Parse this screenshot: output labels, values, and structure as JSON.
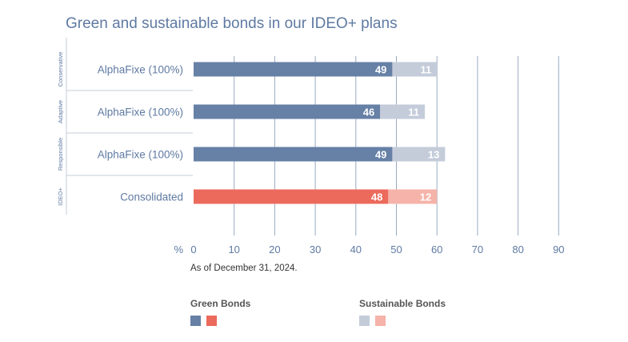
{
  "chart_data": {
    "type": "bar",
    "orientation": "horizontal",
    "stacked": true,
    "title": "Green and sustainable bonds in our IDEO+ plans",
    "groups": [
      "Conservative",
      "Adaptive",
      "Responsible",
      "IDEO+"
    ],
    "categories": [
      "AlphaFixe (100%)",
      "AlphaFixe (100%)",
      "AlphaFixe (100%)",
      "Consolidated"
    ],
    "series": [
      {
        "name": "Green Bonds",
        "values": [
          49,
          46,
          49,
          48
        ],
        "colors": [
          "#6680a6",
          "#6680a6",
          "#6680a6",
          "#ec6a5c"
        ]
      },
      {
        "name": "Sustainable Bonds",
        "values": [
          11,
          11,
          13,
          12
        ],
        "colors": [
          "#c4ccda",
          "#c4ccda",
          "#c4ccda",
          "#f5b3a9"
        ]
      }
    ],
    "xlabel": "%",
    "xticks": [
      0,
      10,
      20,
      30,
      40,
      50,
      60,
      70,
      80,
      90
    ],
    "xlim": [
      0,
      90
    ],
    "grid": true,
    "note": "As of December 31, 2024.",
    "legend": {
      "placement": "bottom",
      "entries": [
        {
          "label": "Green Bonds",
          "colors": [
            "#6680a6",
            "#ec6a5c"
          ]
        },
        {
          "label": "Sustainable Bonds",
          "colors": [
            "#c4ccda",
            "#f5b3a9"
          ]
        }
      ]
    }
  }
}
